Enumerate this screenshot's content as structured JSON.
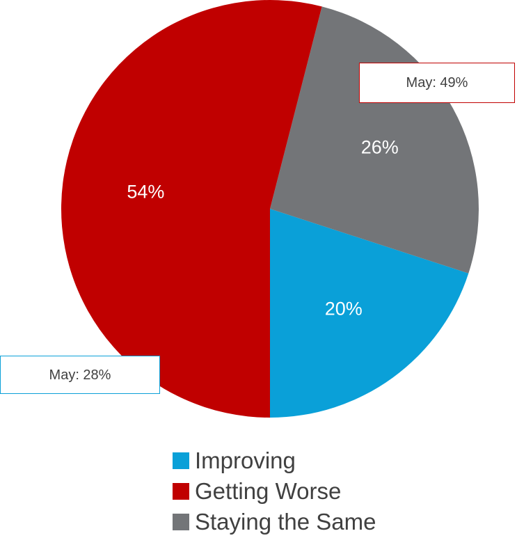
{
  "chart_data": {
    "type": "pie",
    "start_angle_deg": 180,
    "direction": "counterclockwise",
    "slices": [
      {
        "name": "Improving",
        "value": 20,
        "label": "20%",
        "color": "#0aa0d8",
        "callout": "May: 28%"
      },
      {
        "name": "Staying the Same",
        "value": 26,
        "label": "26%",
        "color": "#737578"
      },
      {
        "name": "Getting Worse",
        "value": 54,
        "label": "54%",
        "color": "#c00000",
        "callout": "May: 49%"
      }
    ],
    "legend": {
      "placement": "bottom",
      "entries": [
        {
          "name": "Improving",
          "color": "#0aa0d8"
        },
        {
          "name": "Getting Worse",
          "color": "#c00000"
        },
        {
          "name": "Staying the Same",
          "color": "#737578"
        }
      ]
    }
  }
}
